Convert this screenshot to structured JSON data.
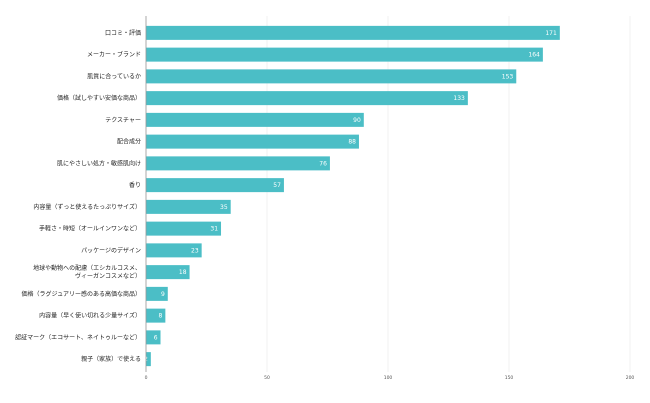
{
  "chart_data": {
    "type": "bar",
    "orientation": "horizontal",
    "title": "",
    "xlabel": "",
    "ylabel": "",
    "xlim": [
      0,
      200
    ],
    "ticks": [
      0,
      50,
      100,
      150,
      200
    ],
    "grid": true,
    "bar_color": "#4bbec6",
    "value_label_color": "#ffffff",
    "categories": [
      [
        "口コミ・評価"
      ],
      [
        "メーカー・ブランド"
      ],
      [
        "肌質に合っているか"
      ],
      [
        "価格（試しやすい安価な商品）"
      ],
      [
        "テクスチャー"
      ],
      [
        "配合成分"
      ],
      [
        "肌にやさしい処方・敏感肌向け"
      ],
      [
        "香り"
      ],
      [
        "内容量（ずっと使えるたっぷりサイズ）"
      ],
      [
        "手軽さ・時短（オールインワンなど）"
      ],
      [
        "パッケージのデザイン"
      ],
      [
        "地球や動物への配慮（エシカルコスメ、",
        "ヴィーガンコスメなど）"
      ],
      [
        "価格（ラグジュアリー感のある高価な商品）"
      ],
      [
        "内容量（早く使い切れる少量サイズ）"
      ],
      [
        "認証マーク（エコサート、ネイトゥルーなど）"
      ],
      [
        "親子（家族）で使える"
      ]
    ],
    "values": [
      171,
      164,
      153,
      133,
      90,
      88,
      76,
      57,
      35,
      31,
      23,
      18,
      9,
      8,
      6,
      2
    ]
  }
}
